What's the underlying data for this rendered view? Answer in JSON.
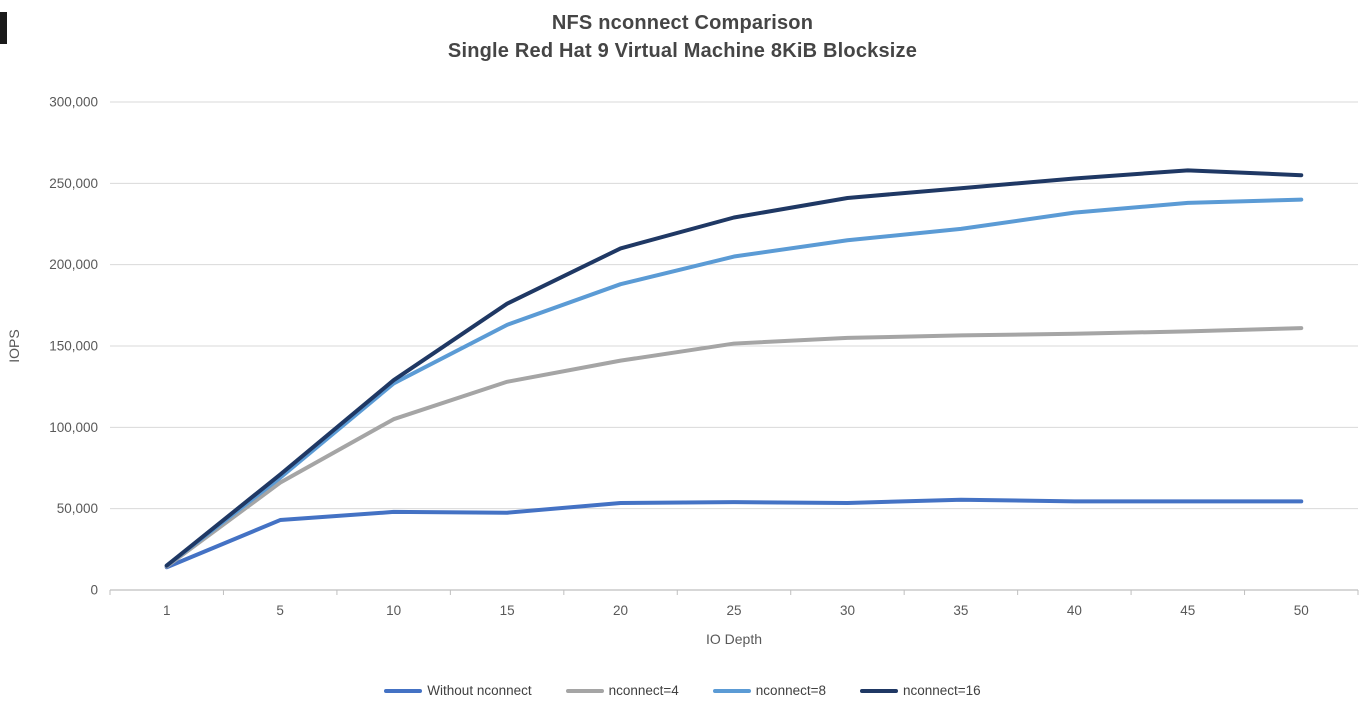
{
  "chart_data": {
    "type": "line",
    "title": "NFS nconnect Comparison",
    "subtitle": "Single Red Hat 9 Virtual Machine 8KiB Blocksize",
    "xlabel": "IO Depth",
    "ylabel": "IOPS",
    "categories": [
      1,
      5,
      10,
      15,
      20,
      25,
      30,
      35,
      40,
      45,
      50
    ],
    "series": [
      {
        "name": "Without nconnect",
        "color": "#4472C4",
        "values": [
          14000,
          43000,
          48000,
          47500,
          53500,
          54000,
          53500,
          55500,
          54500,
          54500,
          54500
        ]
      },
      {
        "name": "nconnect=4",
        "color": "#A5A5A5",
        "values": [
          14500,
          66000,
          105000,
          128000,
          141000,
          151500,
          155000,
          156500,
          157500,
          159000,
          161000
        ]
      },
      {
        "name": "nconnect=8",
        "color": "#5B9BD5",
        "values": [
          15000,
          69000,
          127000,
          163000,
          188000,
          205000,
          215000,
          222000,
          232000,
          238000,
          240000
        ]
      },
      {
        "name": "nconnect=16",
        "color": "#1F3864",
        "values": [
          15000,
          71000,
          129000,
          176000,
          210000,
          229000,
          241000,
          247000,
          253000,
          258000,
          255000
        ]
      }
    ],
    "ylim": [
      0,
      300000
    ],
    "ytick_step": 50000,
    "ytick_labels": [
      "0",
      "50,000",
      "100,000",
      "150,000",
      "200,000",
      "250,000",
      "300,000"
    ],
    "grid": true,
    "legend_position": "bottom",
    "colors": {
      "gridline": "#D9D9D9",
      "axis_line": "#BFBFBF",
      "tick_text": "#595959",
      "title_text": "#454545"
    }
  }
}
